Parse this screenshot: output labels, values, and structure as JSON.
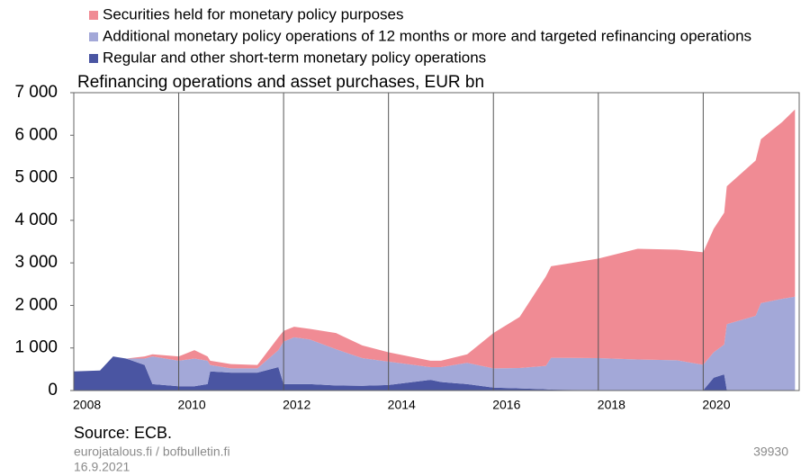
{
  "chart_data": {
    "type": "stacked-area",
    "title": "Refinancing operations and asset purchases, EUR bn",
    "source": "Source: ECB.",
    "footer": {
      "site": "eurojatalous.fi / bofbulletin.fi",
      "date": "16.9.2021",
      "code": "39930"
    },
    "x": [
      2008.0,
      2008.5,
      2008.75,
      2009.0,
      2009.35,
      2009.5,
      2010.0,
      2010.3,
      2010.55,
      2010.6,
      2011.0,
      2011.5,
      2011.9,
      2012.0,
      2012.2,
      2012.5,
      2013.0,
      2013.5,
      2014.0,
      2014.8,
      2015.0,
      2015.5,
      2016.0,
      2016.5,
      2017.0,
      2017.1,
      2018.0,
      2018.75,
      2019.5,
      2020.0,
      2020.2,
      2020.4,
      2020.45,
      2021.0,
      2021.1,
      2021.5,
      2021.75
    ],
    "series": [
      {
        "name": "Securities held for monetary policy purposes",
        "color": "#f08b94",
        "values": [
          0,
          0,
          0,
          0,
          50,
          50,
          100,
          200,
          100,
          100,
          100,
          80,
          300,
          250,
          250,
          250,
          380,
          300,
          220,
          150,
          150,
          200,
          830,
          1200,
          2100,
          2150,
          2340,
          2600,
          2600,
          2645,
          2900,
          3100,
          3240,
          3650,
          3850,
          4150,
          4400
        ]
      },
      {
        "name": "Additional monetary policy operations of 12 months or more and targeted refinancing operations",
        "color": "#a3a8d8",
        "values": [
          0,
          0,
          0,
          0,
          150,
          650,
          600,
          650,
          550,
          150,
          100,
          100,
          400,
          1000,
          1100,
          1050,
          850,
          650,
          550,
          300,
          350,
          500,
          450,
          480,
          550,
          750,
          750,
          720,
          700,
          600,
          600,
          700,
          1550,
          1750,
          2050,
          2150,
          2200
        ]
      },
      {
        "name": "Regular and other short-term monetary policy operations",
        "color": "#4a55a2",
        "values": [
          450,
          470,
          800,
          750,
          600,
          150,
          100,
          100,
          150,
          450,
          420,
          420,
          550,
          150,
          150,
          150,
          120,
          110,
          130,
          250,
          200,
          150,
          70,
          50,
          30,
          20,
          10,
          10,
          10,
          5,
          300,
          380,
          10,
          5,
          5,
          5,
          5
        ]
      }
    ],
    "xlim": [
      2008,
      2021.83
    ],
    "xticks": [
      2008,
      2010,
      2012,
      2014,
      2016,
      2018,
      2020
    ],
    "ylim": [
      0,
      7000
    ],
    "yticks": [
      0,
      {
        "value": 1000,
        "label": "1 000"
      },
      {
        "value": 2000,
        "label": "2 000"
      },
      {
        "value": 3000,
        "label": "3 000"
      },
      {
        "value": 4000,
        "label": "4 000"
      },
      {
        "value": 5000,
        "label": "5 000"
      },
      {
        "value": 6000,
        "label": "6 000"
      },
      {
        "value": 7000,
        "label": "7 000"
      }
    ],
    "xgrid": true
  }
}
